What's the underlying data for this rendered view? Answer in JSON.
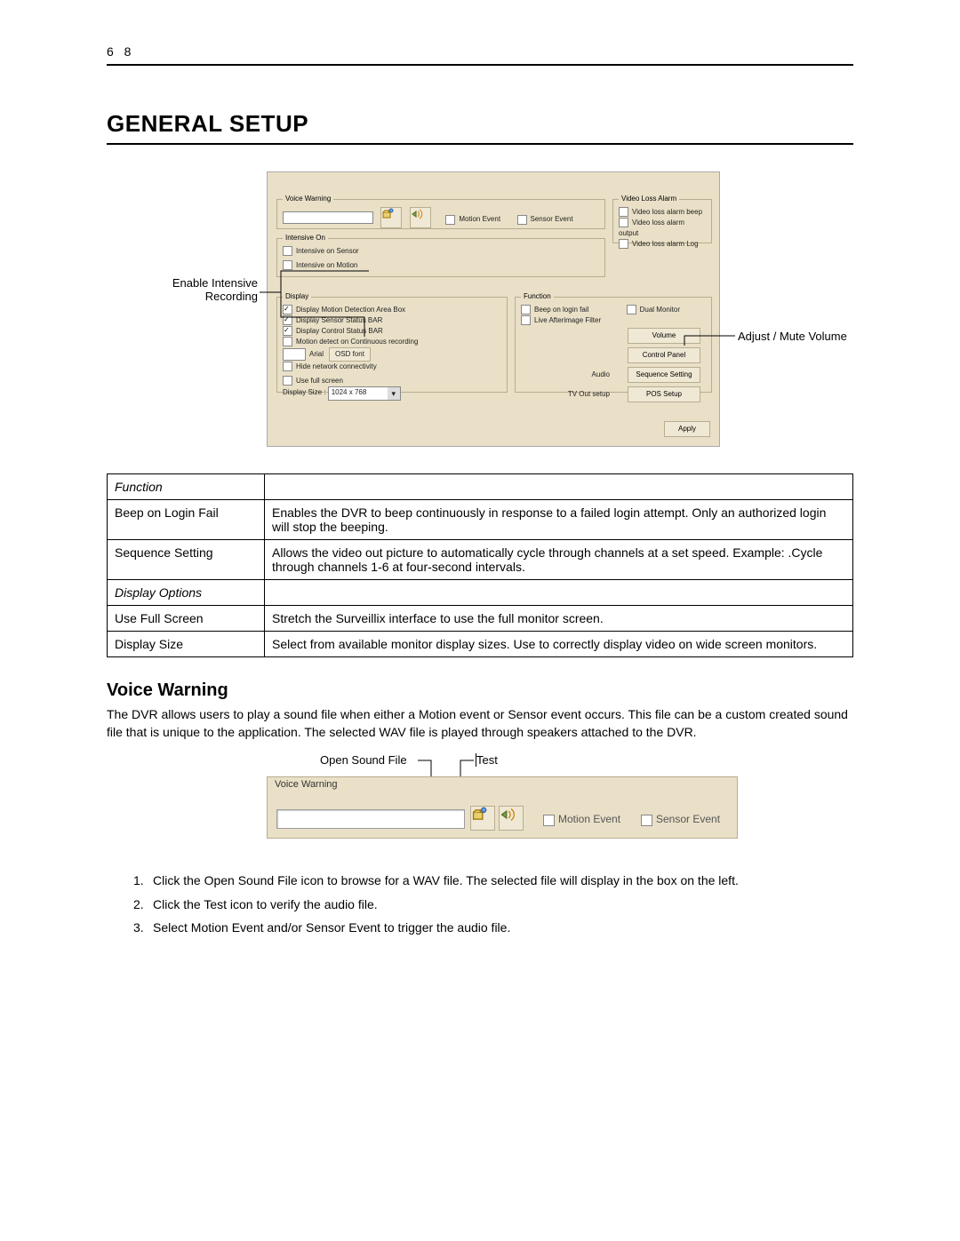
{
  "page_number": "6 8",
  "title": "GENERAL SETUP",
  "callouts": {
    "intensive": "Enable Intensive\nRecording",
    "volume": "Adjust / Mute Volume"
  },
  "screenshot": {
    "voice_warning": {
      "legend": "Voice Warning",
      "motion": "Motion Event",
      "sensor": "Sensor Event"
    },
    "video_loss": {
      "legend": "Video Loss Alarm",
      "beep": "Video loss alarm beep",
      "output": "Video loss alarm output",
      "log": "Video loss alarm Log"
    },
    "intensive": {
      "legend": "Intensive On",
      "sensor": "Intensive on Sensor",
      "motion": "Intensive on Motion"
    },
    "display": {
      "legend": "Display",
      "opt1": "Display Motion Detection Area Box",
      "opt2": "Display Sensor Status BAR",
      "opt3": "Display Control Status BAR",
      "opt4": "Motion detect on Continuous recording",
      "font_name": "Arial",
      "osd_btn": "OSD font",
      "hide": "Hide network connectivity",
      "fullscreen": "Use full screen",
      "size_label": "Display Size :",
      "size_value": "1024 x 768"
    },
    "function": {
      "legend": "Function",
      "beep": "Beep on login fail",
      "dual": "Dual Monitor",
      "afterimage": "Live Afterimage Filter",
      "btn_volume": "Volume",
      "btn_cpanel": "Control Panel",
      "label_audio": "Audio",
      "btn_seq": "Sequence Setting",
      "label_tvout": "TV Out setup",
      "btn_pos": "POS Setup"
    },
    "apply": "Apply"
  },
  "table": [
    {
      "k": "Function",
      "v": "",
      "ital": true
    },
    {
      "k": "Beep on Login Fail",
      "v": "Enables the DVR to beep continuously in response to a failed login attempt. Only an authorized login will stop the beeping."
    },
    {
      "k": "Sequence Setting",
      "v": "Allows the video out picture to automatically cycle through channels at a set speed. Example: .Cycle through channels 1-6 at four-second intervals."
    },
    {
      "k": "Display Options",
      "v": "",
      "ital": true
    },
    {
      "k": "Use Full Screen",
      "v": "Stretch the Surveillix interface to use the full monitor screen."
    },
    {
      "k": "Display Size",
      "v": "Select from available monitor display sizes. Use to correctly display video on wide screen monitors."
    }
  ],
  "voice_heading": "Voice Warning",
  "voice_para": "The DVR allows users to play a sound file when either a Motion event or Sensor event occurs. This file can be a custom created sound file that is unique to the application. The selected WAV file is played through speakers attached to the DVR.",
  "vw": {
    "open": "Open Sound File",
    "test": "Test",
    "legend": "Voice Warning",
    "motion": "Motion Event",
    "sensor": "Sensor Event"
  },
  "steps": [
    "Click the Open Sound File icon to browse for a WAV file. The selected file will display in the box on the left.",
    "Click the Test icon to verify the audio file.",
    "Select Motion Event and/or Sensor Event to trigger the audio file."
  ]
}
